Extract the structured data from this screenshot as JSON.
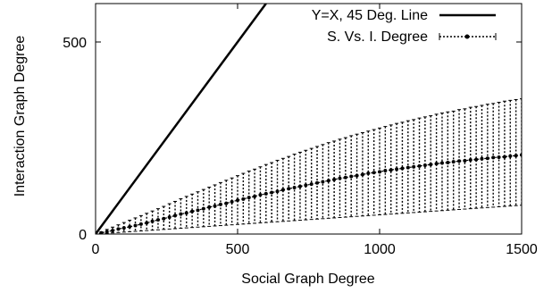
{
  "chart_data": {
    "type": "line",
    "title": "",
    "xlabel": "Social Graph Degree",
    "ylabel": "Interaction Graph Degree",
    "xlim": [
      0,
      1500
    ],
    "ylim": [
      0,
      600
    ],
    "x_ticks": [
      "0",
      "500",
      "1000",
      "1500"
    ],
    "y_ticks": [
      "0",
      "500"
    ],
    "x_tick_values": [
      0,
      500,
      1000,
      1500
    ],
    "y_tick_values": [
      0,
      500
    ],
    "grid": false,
    "legend_position": "top-right",
    "series": [
      {
        "name": "Y=X, 45 Deg. Line",
        "style": "solid",
        "color": "#000000",
        "x": [
          0,
          600
        ],
        "y": [
          0,
          600
        ]
      },
      {
        "name": "S. Vs. I. Degree",
        "style": "dotted-with-points-and-errorbars",
        "color": "#000000",
        "x": [
          0,
          20,
          40,
          60,
          80,
          100,
          120,
          140,
          160,
          180,
          200,
          220,
          240,
          260,
          280,
          300,
          320,
          340,
          360,
          380,
          400,
          420,
          440,
          460,
          480,
          500,
          520,
          540,
          560,
          580,
          600,
          620,
          640,
          660,
          680,
          700,
          720,
          740,
          760,
          780,
          800,
          820,
          840,
          860,
          880,
          900,
          920,
          940,
          960,
          980,
          1000,
          1020,
          1040,
          1060,
          1080,
          1100,
          1120,
          1140,
          1160,
          1180,
          1200,
          1220,
          1240,
          1260,
          1280,
          1300,
          1320,
          1340,
          1360,
          1380,
          1400,
          1420,
          1440,
          1460,
          1480,
          1500
        ],
        "y": [
          0,
          3,
          6,
          9,
          13,
          16,
          19,
          22,
          26,
          29,
          33,
          37,
          40,
          44,
          48,
          52,
          55,
          59,
          62,
          66,
          70,
          73,
          77,
          80,
          84,
          88,
          91,
          95,
          98,
          102,
          105,
          108,
          111,
          115,
          118,
          121,
          124,
          127,
          130,
          133,
          136,
          139,
          142,
          145,
          147,
          150,
          152,
          155,
          158,
          160,
          162,
          165,
          167,
          169,
          171,
          173,
          175,
          177,
          179,
          181,
          183,
          185,
          186,
          188,
          190,
          191,
          193,
          194,
          196,
          197,
          199,
          200,
          201,
          203,
          204,
          206
        ],
        "y_high": [
          0,
          6,
          12,
          18,
          24,
          30,
          36,
          42,
          48,
          54,
          60,
          66,
          72,
          79,
          85,
          92,
          98,
          104,
          110,
          116,
          122,
          128,
          134,
          140,
          146,
          152,
          158,
          164,
          169,
          175,
          181,
          186,
          192,
          197,
          202,
          208,
          213,
          218,
          223,
          228,
          233,
          238,
          242,
          247,
          251,
          256,
          260,
          264,
          268,
          272,
          276,
          280,
          284,
          288,
          291,
          295,
          298,
          302,
          305,
          308,
          312,
          315,
          318,
          320,
          324,
          326,
          330,
          332,
          335,
          338,
          340,
          343,
          346,
          348,
          350,
          352
        ],
        "y_low": [
          0,
          1,
          2,
          3,
          4,
          5,
          6,
          7,
          8,
          9,
          10,
          11,
          12,
          13,
          14,
          15,
          16,
          17,
          18,
          19,
          20,
          21,
          22,
          23,
          24,
          25,
          26,
          27,
          28,
          29,
          30,
          31,
          32,
          33,
          34,
          35,
          36,
          37,
          38,
          39,
          40,
          41,
          42,
          43,
          44,
          45,
          46,
          47,
          48,
          49,
          50,
          51,
          52,
          53,
          54,
          55,
          56,
          57,
          58,
          59,
          60,
          61,
          62,
          63,
          64,
          65,
          66,
          67,
          68,
          69,
          70,
          71,
          72,
          73,
          74,
          75
        ]
      }
    ]
  }
}
